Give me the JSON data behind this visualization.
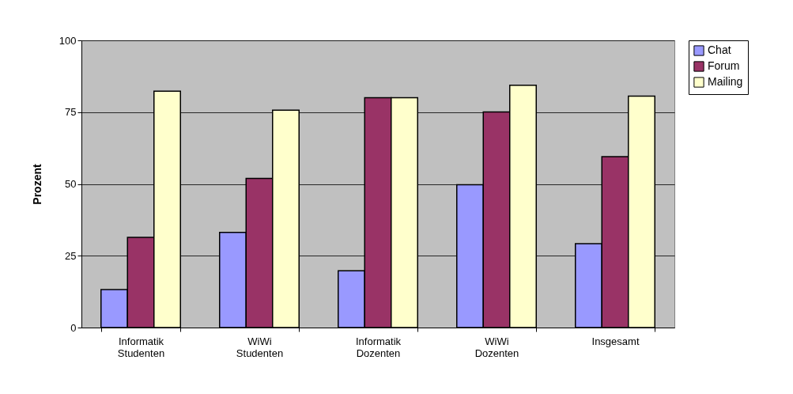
{
  "chart_data": {
    "type": "bar",
    "ylabel": "Prozent",
    "categories": [
      "Informatik\nStudenten",
      "WiWi\nStudenten",
      "Informatik\nDozenten",
      "WiWi\nDozenten",
      "Insgesamt"
    ],
    "series": [
      {
        "name": "Chat",
        "color": "#9999ff",
        "values": [
          13.2,
          33.1,
          19.8,
          49.7,
          29.2
        ]
      },
      {
        "name": "Forum",
        "color": "#993366",
        "values": [
          31.4,
          51.9,
          80,
          75.1,
          59.5
        ]
      },
      {
        "name": "Mailing",
        "color": "#ffffcc",
        "values": [
          82.3,
          75.7,
          80,
          84.4,
          80.6
        ]
      }
    ],
    "ylim": [
      0,
      100
    ],
    "yticks": [
      0,
      25,
      50,
      75,
      100
    ],
    "grid": "y",
    "legend": "right"
  }
}
